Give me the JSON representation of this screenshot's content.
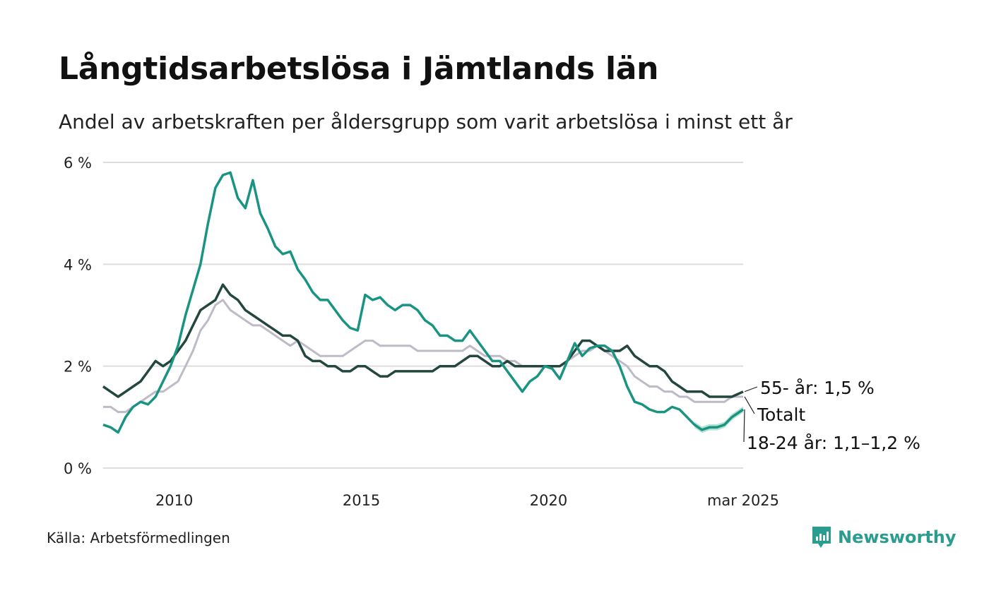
{
  "title": "Långtidsarbetslösa i Jämtlands län",
  "subtitle": "Andel av arbetskraften per åldersgrupp som varit arbetslösa i minst ett år",
  "source": "Källa: Arbetsförmedlingen",
  "brand": "Newsworthy",
  "colors": {
    "youth": "#1a9482",
    "older": "#23473f",
    "total": "#bfbac8",
    "band": "#a8dccb",
    "grid": "#dddddd"
  },
  "chart_data": {
    "type": "line",
    "ylim": [
      0,
      6
    ],
    "y_ticks": [
      0,
      2,
      4,
      6
    ],
    "y_tick_labels": [
      "0 %",
      "2 %",
      "4 %",
      "6 %"
    ],
    "x_range": [
      2008.1,
      2025.2
    ],
    "x_ticks": [
      2010,
      2015,
      2020,
      2025.2
    ],
    "x_tick_labels": [
      "2010",
      "2015",
      "2020",
      "mar 2025"
    ],
    "series": [
      {
        "key": "total",
        "label": "Totalt",
        "points": [
          [
            2008.1,
            1.2
          ],
          [
            2008.3,
            1.2
          ],
          [
            2008.5,
            1.1
          ],
          [
            2008.7,
            1.1
          ],
          [
            2008.9,
            1.2
          ],
          [
            2009.1,
            1.3
          ],
          [
            2009.3,
            1.4
          ],
          [
            2009.5,
            1.5
          ],
          [
            2009.7,
            1.5
          ],
          [
            2009.9,
            1.6
          ],
          [
            2010.1,
            1.7
          ],
          [
            2010.3,
            2.0
          ],
          [
            2010.5,
            2.3
          ],
          [
            2010.7,
            2.7
          ],
          [
            2010.9,
            2.9
          ],
          [
            2011.1,
            3.2
          ],
          [
            2011.3,
            3.3
          ],
          [
            2011.5,
            3.1
          ],
          [
            2011.7,
            3.0
          ],
          [
            2011.9,
            2.9
          ],
          [
            2012.1,
            2.8
          ],
          [
            2012.3,
            2.8
          ],
          [
            2012.5,
            2.7
          ],
          [
            2012.7,
            2.6
          ],
          [
            2012.9,
            2.5
          ],
          [
            2013.1,
            2.4
          ],
          [
            2013.3,
            2.5
          ],
          [
            2013.5,
            2.4
          ],
          [
            2013.7,
            2.3
          ],
          [
            2013.9,
            2.2
          ],
          [
            2014.1,
            2.2
          ],
          [
            2014.3,
            2.2
          ],
          [
            2014.5,
            2.2
          ],
          [
            2014.7,
            2.3
          ],
          [
            2014.9,
            2.4
          ],
          [
            2015.1,
            2.5
          ],
          [
            2015.3,
            2.5
          ],
          [
            2015.5,
            2.4
          ],
          [
            2015.7,
            2.4
          ],
          [
            2015.9,
            2.4
          ],
          [
            2016.1,
            2.4
          ],
          [
            2016.3,
            2.4
          ],
          [
            2016.5,
            2.3
          ],
          [
            2016.7,
            2.3
          ],
          [
            2016.9,
            2.3
          ],
          [
            2017.1,
            2.3
          ],
          [
            2017.3,
            2.3
          ],
          [
            2017.5,
            2.3
          ],
          [
            2017.7,
            2.3
          ],
          [
            2017.9,
            2.4
          ],
          [
            2018.1,
            2.3
          ],
          [
            2018.3,
            2.2
          ],
          [
            2018.5,
            2.2
          ],
          [
            2018.7,
            2.2
          ],
          [
            2018.9,
            2.1
          ],
          [
            2019.1,
            2.1
          ],
          [
            2019.3,
            2.0
          ],
          [
            2019.5,
            2.0
          ],
          [
            2019.7,
            2.0
          ],
          [
            2019.9,
            2.0
          ],
          [
            2020.1,
            2.0
          ],
          [
            2020.3,
            2.0
          ],
          [
            2020.5,
            2.1
          ],
          [
            2020.7,
            2.2
          ],
          [
            2020.9,
            2.3
          ],
          [
            2021.1,
            2.3
          ],
          [
            2021.3,
            2.4
          ],
          [
            2021.5,
            2.3
          ],
          [
            2021.7,
            2.2
          ],
          [
            2021.9,
            2.1
          ],
          [
            2022.1,
            2.0
          ],
          [
            2022.3,
            1.8
          ],
          [
            2022.5,
            1.7
          ],
          [
            2022.7,
            1.6
          ],
          [
            2022.9,
            1.6
          ],
          [
            2023.1,
            1.5
          ],
          [
            2023.3,
            1.5
          ],
          [
            2023.5,
            1.4
          ],
          [
            2023.7,
            1.4
          ],
          [
            2023.9,
            1.3
          ],
          [
            2024.1,
            1.3
          ],
          [
            2024.3,
            1.3
          ],
          [
            2024.5,
            1.3
          ],
          [
            2024.7,
            1.3
          ],
          [
            2024.9,
            1.4
          ],
          [
            2025.2,
            1.4
          ]
        ]
      },
      {
        "key": "older",
        "label": "55- år: 1,5 %",
        "points": [
          [
            2008.1,
            1.6
          ],
          [
            2008.3,
            1.5
          ],
          [
            2008.5,
            1.4
          ],
          [
            2008.7,
            1.5
          ],
          [
            2008.9,
            1.6
          ],
          [
            2009.1,
            1.7
          ],
          [
            2009.3,
            1.9
          ],
          [
            2009.5,
            2.1
          ],
          [
            2009.7,
            2.0
          ],
          [
            2009.9,
            2.1
          ],
          [
            2010.1,
            2.3
          ],
          [
            2010.3,
            2.5
          ],
          [
            2010.5,
            2.8
          ],
          [
            2010.7,
            3.1
          ],
          [
            2010.9,
            3.2
          ],
          [
            2011.1,
            3.3
          ],
          [
            2011.3,
            3.6
          ],
          [
            2011.5,
            3.4
          ],
          [
            2011.7,
            3.3
          ],
          [
            2011.9,
            3.1
          ],
          [
            2012.1,
            3.0
          ],
          [
            2012.3,
            2.9
          ],
          [
            2012.5,
            2.8
          ],
          [
            2012.7,
            2.7
          ],
          [
            2012.9,
            2.6
          ],
          [
            2013.1,
            2.6
          ],
          [
            2013.3,
            2.5
          ],
          [
            2013.5,
            2.2
          ],
          [
            2013.7,
            2.1
          ],
          [
            2013.9,
            2.1
          ],
          [
            2014.1,
            2.0
          ],
          [
            2014.3,
            2.0
          ],
          [
            2014.5,
            1.9
          ],
          [
            2014.7,
            1.9
          ],
          [
            2014.9,
            2.0
          ],
          [
            2015.1,
            2.0
          ],
          [
            2015.3,
            1.9
          ],
          [
            2015.5,
            1.8
          ],
          [
            2015.7,
            1.8
          ],
          [
            2015.9,
            1.9
          ],
          [
            2016.1,
            1.9
          ],
          [
            2016.3,
            1.9
          ],
          [
            2016.5,
            1.9
          ],
          [
            2016.7,
            1.9
          ],
          [
            2016.9,
            1.9
          ],
          [
            2017.1,
            2.0
          ],
          [
            2017.3,
            2.0
          ],
          [
            2017.5,
            2.0
          ],
          [
            2017.7,
            2.1
          ],
          [
            2017.9,
            2.2
          ],
          [
            2018.1,
            2.2
          ],
          [
            2018.3,
            2.1
          ],
          [
            2018.5,
            2.0
          ],
          [
            2018.7,
            2.0
          ],
          [
            2018.9,
            2.1
          ],
          [
            2019.1,
            2.0
          ],
          [
            2019.3,
            2.0
          ],
          [
            2019.5,
            2.0
          ],
          [
            2019.7,
            2.0
          ],
          [
            2019.9,
            2.0
          ],
          [
            2020.1,
            2.0
          ],
          [
            2020.3,
            2.0
          ],
          [
            2020.5,
            2.1
          ],
          [
            2020.7,
            2.3
          ],
          [
            2020.9,
            2.5
          ],
          [
            2021.1,
            2.5
          ],
          [
            2021.3,
            2.4
          ],
          [
            2021.5,
            2.3
          ],
          [
            2021.7,
            2.3
          ],
          [
            2021.9,
            2.3
          ],
          [
            2022.1,
            2.4
          ],
          [
            2022.3,
            2.2
          ],
          [
            2022.5,
            2.1
          ],
          [
            2022.7,
            2.0
          ],
          [
            2022.9,
            2.0
          ],
          [
            2023.1,
            1.9
          ],
          [
            2023.3,
            1.7
          ],
          [
            2023.5,
            1.6
          ],
          [
            2023.7,
            1.5
          ],
          [
            2023.9,
            1.5
          ],
          [
            2024.1,
            1.5
          ],
          [
            2024.3,
            1.4
          ],
          [
            2024.5,
            1.4
          ],
          [
            2024.7,
            1.4
          ],
          [
            2024.9,
            1.4
          ],
          [
            2025.2,
            1.5
          ]
        ]
      },
      {
        "key": "youth",
        "label": "18-24 år: 1,1–1,2 %",
        "points": [
          [
            2008.1,
            0.85
          ],
          [
            2008.3,
            0.8
          ],
          [
            2008.5,
            0.7
          ],
          [
            2008.7,
            1.0
          ],
          [
            2008.9,
            1.2
          ],
          [
            2009.1,
            1.3
          ],
          [
            2009.3,
            1.25
          ],
          [
            2009.5,
            1.4
          ],
          [
            2009.7,
            1.7
          ],
          [
            2009.9,
            2.0
          ],
          [
            2010.1,
            2.4
          ],
          [
            2010.3,
            3.0
          ],
          [
            2010.5,
            3.5
          ],
          [
            2010.7,
            4.0
          ],
          [
            2010.9,
            4.8
          ],
          [
            2011.1,
            5.5
          ],
          [
            2011.3,
            5.75
          ],
          [
            2011.5,
            5.8
          ],
          [
            2011.7,
            5.3
          ],
          [
            2011.9,
            5.1
          ],
          [
            2012.1,
            5.65
          ],
          [
            2012.3,
            5.0
          ],
          [
            2012.5,
            4.7
          ],
          [
            2012.7,
            4.35
          ],
          [
            2012.9,
            4.2
          ],
          [
            2013.1,
            4.25
          ],
          [
            2013.3,
            3.9
          ],
          [
            2013.5,
            3.7
          ],
          [
            2013.7,
            3.45
          ],
          [
            2013.9,
            3.3
          ],
          [
            2014.1,
            3.3
          ],
          [
            2014.3,
            3.1
          ],
          [
            2014.5,
            2.9
          ],
          [
            2014.7,
            2.75
          ],
          [
            2014.9,
            2.7
          ],
          [
            2015.1,
            3.4
          ],
          [
            2015.3,
            3.3
          ],
          [
            2015.5,
            3.35
          ],
          [
            2015.7,
            3.2
          ],
          [
            2015.9,
            3.1
          ],
          [
            2016.1,
            3.2
          ],
          [
            2016.3,
            3.2
          ],
          [
            2016.5,
            3.1
          ],
          [
            2016.7,
            2.9
          ],
          [
            2016.9,
            2.8
          ],
          [
            2017.1,
            2.6
          ],
          [
            2017.3,
            2.6
          ],
          [
            2017.5,
            2.5
          ],
          [
            2017.7,
            2.5
          ],
          [
            2017.9,
            2.7
          ],
          [
            2018.1,
            2.5
          ],
          [
            2018.3,
            2.3
          ],
          [
            2018.5,
            2.1
          ],
          [
            2018.7,
            2.1
          ],
          [
            2018.9,
            1.9
          ],
          [
            2019.1,
            1.7
          ],
          [
            2019.3,
            1.5
          ],
          [
            2019.5,
            1.7
          ],
          [
            2019.7,
            1.8
          ],
          [
            2019.9,
            2.0
          ],
          [
            2020.1,
            1.95
          ],
          [
            2020.3,
            1.75
          ],
          [
            2020.5,
            2.1
          ],
          [
            2020.7,
            2.45
          ],
          [
            2020.9,
            2.2
          ],
          [
            2021.1,
            2.35
          ],
          [
            2021.3,
            2.4
          ],
          [
            2021.5,
            2.4
          ],
          [
            2021.7,
            2.3
          ],
          [
            2021.9,
            2.0
          ],
          [
            2022.1,
            1.6
          ],
          [
            2022.3,
            1.3
          ],
          [
            2022.5,
            1.25
          ],
          [
            2022.7,
            1.15
          ],
          [
            2022.9,
            1.1
          ],
          [
            2023.1,
            1.1
          ],
          [
            2023.3,
            1.2
          ],
          [
            2023.5,
            1.15
          ],
          [
            2023.7,
            1.0
          ],
          [
            2023.9,
            0.85
          ],
          [
            2024.1,
            0.75
          ],
          [
            2024.3,
            0.8
          ],
          [
            2024.5,
            0.8
          ],
          [
            2024.7,
            0.85
          ],
          [
            2024.9,
            1.0
          ],
          [
            2025.2,
            1.15
          ]
        ]
      }
    ],
    "band": {
      "key": "youth",
      "x_from": 2023.8,
      "half_width": 0.06
    }
  }
}
